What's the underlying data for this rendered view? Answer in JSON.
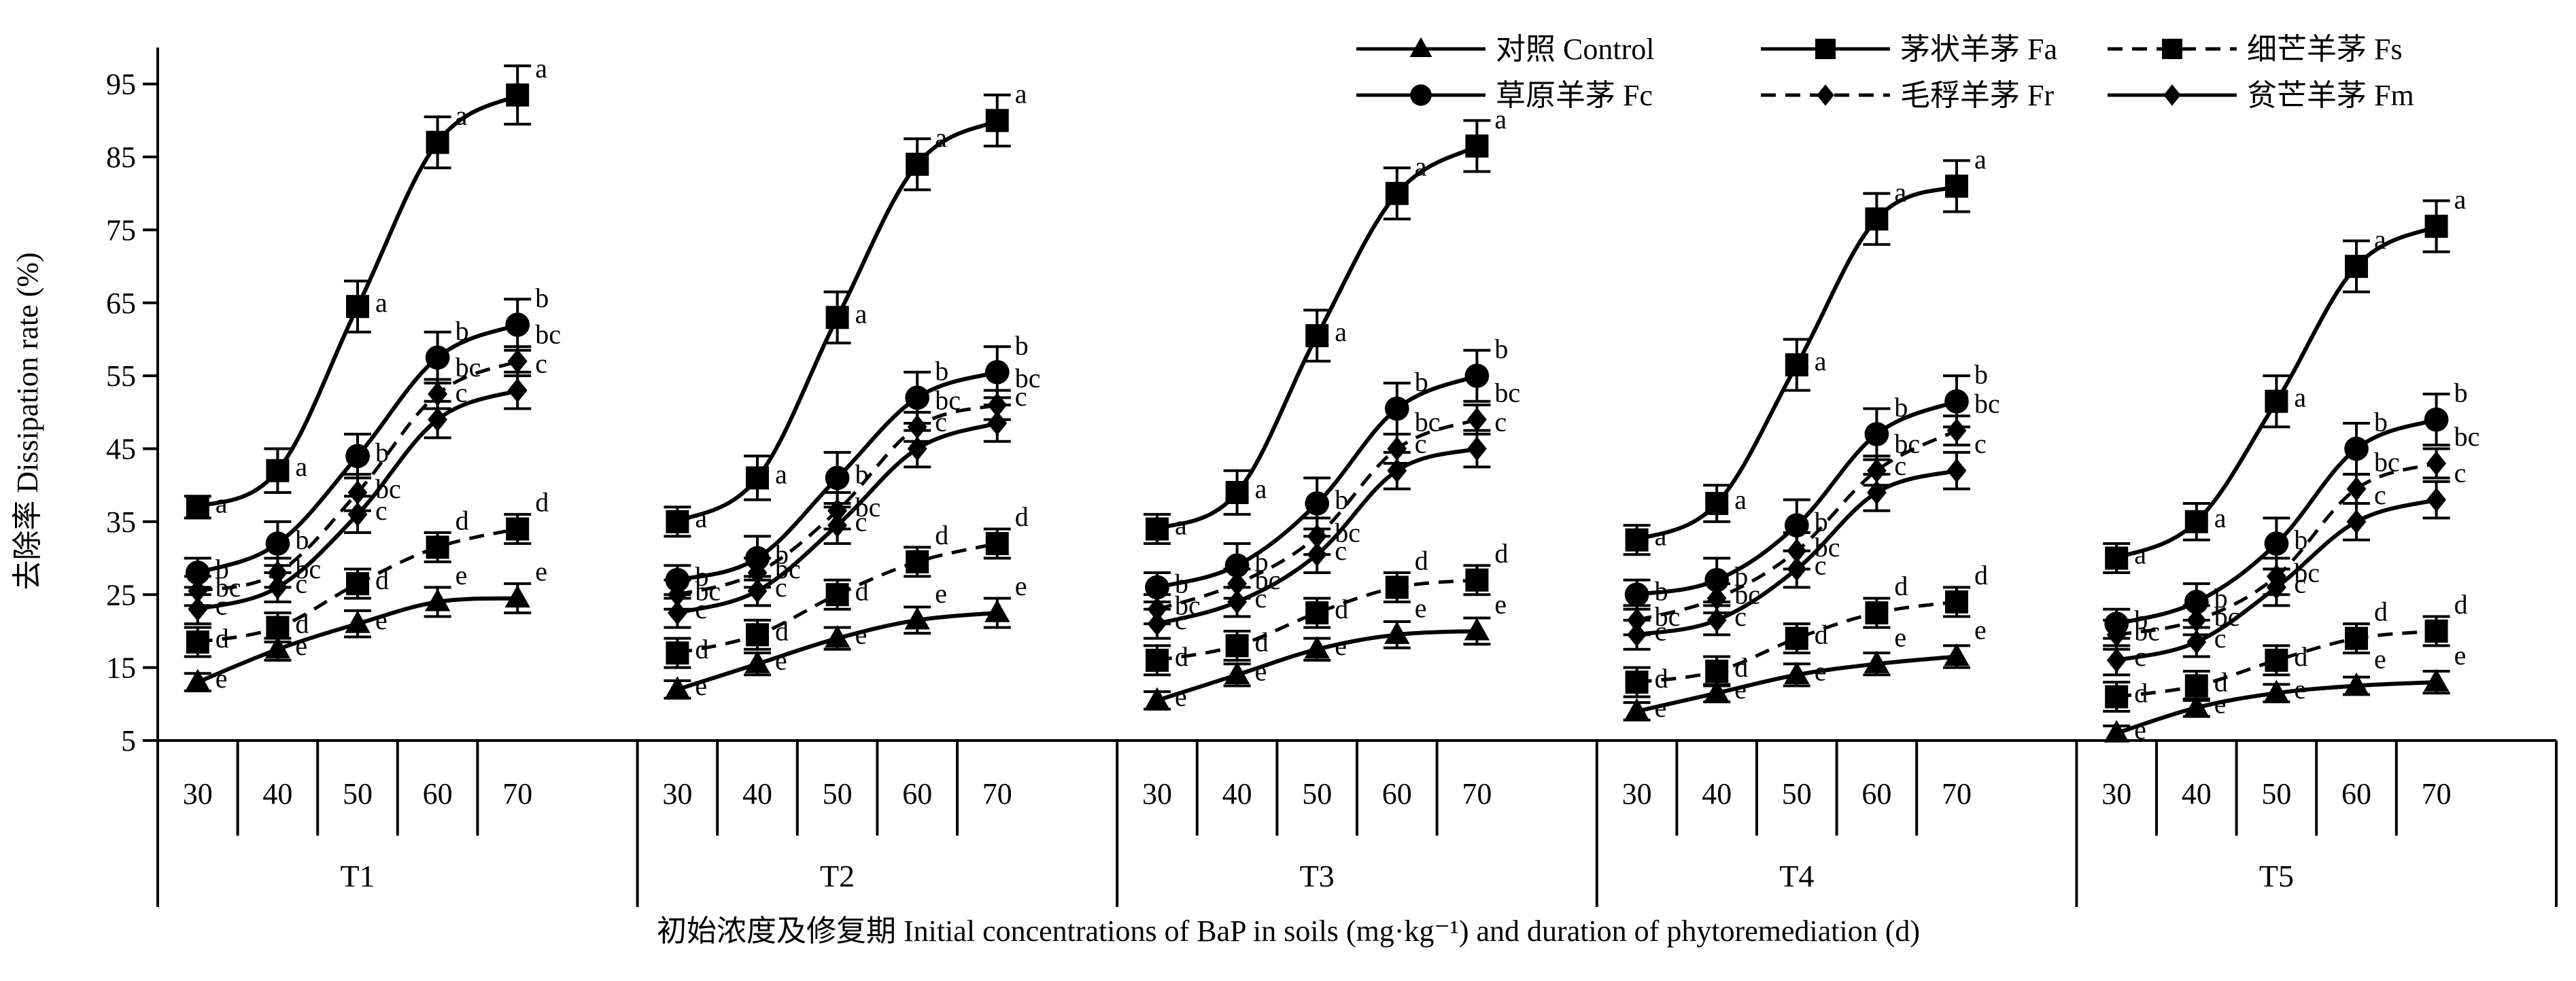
{
  "chart_data": {
    "type": "line",
    "ylabel": "去除率 Dissipation rate (%)",
    "xlabel": "初始浓度及修复期 Initial concentrations of BaP in soils (mg·kg⁻¹) and duration of phytoremediation (d)",
    "ylim": [
      5,
      100
    ],
    "yticks": [
      5,
      15,
      25,
      35,
      45,
      55,
      65,
      75,
      85,
      95
    ],
    "grid": false,
    "legend_position": "top-right",
    "groups": [
      "T1",
      "T2",
      "T3",
      "T4",
      "T5"
    ],
    "concentrations": [
      "30",
      "40",
      "50",
      "60",
      "70"
    ],
    "series": [
      {
        "name": "对照 Control",
        "marker": "triangle",
        "dash": false,
        "values": [
          [
            13,
            17.5,
            21,
            24,
            24.5
          ],
          [
            12,
            15.5,
            19,
            21.5,
            22.5
          ],
          [
            10.5,
            14,
            17.5,
            19.5,
            20
          ],
          [
            9,
            11.5,
            14,
            15.5,
            16.5
          ],
          [
            6,
            9.5,
            11.5,
            12.5,
            13
          ]
        ],
        "errors": [
          [
            1.2,
            1.5,
            1.8,
            2,
            2
          ],
          [
            1.2,
            1.5,
            1.5,
            1.8,
            2
          ],
          [
            1.2,
            1.5,
            1.5,
            1.8,
            1.8
          ],
          [
            1.2,
            1.2,
            1.5,
            1.5,
            1.5
          ],
          [
            1,
            1.2,
            1.2,
            1.2,
            1.5
          ]
        ],
        "labels": [
          [
            "e",
            "e",
            "e",
            "e",
            "e"
          ],
          [
            "e",
            "e",
            "e",
            "e",
            "e"
          ],
          [
            "e",
            "e",
            "e",
            "e",
            "e"
          ],
          [
            "e",
            "e",
            "e",
            "e",
            "e"
          ],
          [
            "e",
            "e",
            "e",
            "e",
            "e"
          ]
        ]
      },
      {
        "name": "茅状羊茅 Fa",
        "marker": "square",
        "dash": false,
        "values": [
          [
            37,
            42,
            64.5,
            87,
            93.5
          ],
          [
            35,
            41,
            63,
            84,
            90
          ],
          [
            34,
            39,
            60.5,
            80,
            86.5
          ],
          [
            32.5,
            37.5,
            56.5,
            76.5,
            81
          ],
          [
            30,
            35,
            51.5,
            70,
            75.5
          ]
        ],
        "errors": [
          [
            1.5,
            3,
            3.5,
            3.5,
            4
          ],
          [
            2,
            3,
            3.5,
            3.5,
            3.5
          ],
          [
            2,
            3,
            3.5,
            3.5,
            3.5
          ],
          [
            2,
            2.5,
            3.5,
            3.5,
            3.5
          ],
          [
            2,
            2.5,
            3.5,
            3.5,
            3.5
          ]
        ],
        "labels": [
          [
            "a",
            "a",
            "a",
            "a",
            "a"
          ],
          [
            "a",
            "a",
            "a",
            "a",
            "a"
          ],
          [
            "a",
            "a",
            "a",
            "a",
            "a"
          ],
          [
            "a",
            "a",
            "a",
            "a",
            "a"
          ],
          [
            "a",
            "a",
            "a",
            "a",
            "a"
          ]
        ]
      },
      {
        "name": "细芒羊茅 Fs",
        "marker": "square",
        "dash": true,
        "values": [
          [
            18.5,
            20.5,
            26.5,
            31.5,
            34
          ],
          [
            17,
            19.5,
            25,
            29.5,
            32
          ],
          [
            16,
            18,
            22.5,
            26,
            27
          ],
          [
            13,
            14.5,
            19,
            22.5,
            24
          ],
          [
            11,
            12.5,
            16,
            19,
            20
          ]
        ],
        "errors": [
          [
            2,
            2,
            2,
            2,
            2
          ],
          [
            2,
            2,
            2,
            2,
            2
          ],
          [
            2,
            2,
            2,
            2,
            2
          ],
          [
            2,
            2,
            2,
            2,
            2
          ],
          [
            2,
            2,
            2,
            2,
            2
          ]
        ],
        "labels": [
          [
            "d",
            "d",
            "d",
            "d",
            "d"
          ],
          [
            "d",
            "d",
            "d",
            "d",
            "d"
          ],
          [
            "d",
            "d",
            "d",
            "d",
            "d"
          ],
          [
            "d",
            "d",
            "d",
            "d",
            "d"
          ],
          [
            "d",
            "d",
            "d",
            "d",
            "d"
          ]
        ]
      },
      {
        "name": "草原羊茅 Fc",
        "marker": "circle",
        "dash": false,
        "values": [
          [
            28,
            32,
            44,
            57.5,
            62
          ],
          [
            27,
            30,
            41,
            52,
            55.5
          ],
          [
            26,
            29,
            37.5,
            50.5,
            55
          ],
          [
            25,
            27,
            34.5,
            47,
            51.5
          ],
          [
            21,
            24,
            32,
            45,
            49
          ]
        ],
        "errors": [
          [
            2,
            3,
            3,
            3.5,
            3.5
          ],
          [
            2,
            3,
            3.5,
            3.5,
            3.5
          ],
          [
            2,
            3,
            3.5,
            3.5,
            3.5
          ],
          [
            2,
            3,
            3.5,
            3.5,
            3.5
          ],
          [
            2,
            2.5,
            3.5,
            3.5,
            3.5
          ]
        ],
        "labels": [
          [
            "b",
            "b",
            "b",
            "b",
            "b"
          ],
          [
            "b",
            "b",
            "b",
            "b",
            "b"
          ],
          [
            "b",
            "b",
            "b",
            "b",
            "b"
          ],
          [
            "b",
            "b",
            "b",
            "b",
            "b"
          ],
          [
            "b",
            "b",
            "b",
            "b",
            "b"
          ]
        ]
      },
      {
        "name": "毛稃羊茅 Fr",
        "marker": "diamond",
        "dash": true,
        "values": [
          [
            25.5,
            28,
            39,
            52.5,
            57
          ],
          [
            25,
            28,
            36.5,
            48,
            51
          ],
          [
            23,
            26.5,
            33,
            45,
            49
          ],
          [
            21.5,
            24.5,
            31,
            42,
            47.5
          ],
          [
            19.5,
            21.5,
            27.5,
            39.5,
            43
          ]
        ],
        "errors": [
          [
            2,
            2,
            2.5,
            2,
            2
          ],
          [
            2,
            2,
            2.5,
            2,
            2
          ],
          [
            2,
            2,
            2.5,
            2,
            2
          ],
          [
            2,
            2,
            2.5,
            2,
            2
          ],
          [
            2,
            2,
            2.5,
            2,
            2
          ]
        ],
        "labels": [
          [
            "bc",
            "bc",
            "bc",
            "bc",
            "bc"
          ],
          [
            "bc",
            "bc",
            "bc",
            "bc",
            "bc"
          ],
          [
            "bc",
            "bc",
            "bc",
            "bc",
            "bc"
          ],
          [
            "bc",
            "bc",
            "bc",
            "bc",
            "bc"
          ],
          [
            "bc",
            "bc",
            "bc",
            "bc",
            "bc"
          ]
        ]
      },
      {
        "name": "贫芒羊茅 Fm",
        "marker": "diamond",
        "dash": false,
        "values": [
          [
            23,
            26,
            36,
            49,
            53
          ],
          [
            22.5,
            25.5,
            34.5,
            45,
            48.5
          ],
          [
            21,
            24,
            30.5,
            42,
            45
          ],
          [
            19.5,
            21.5,
            28.5,
            39,
            42
          ],
          [
            16,
            18.5,
            26,
            35,
            38
          ]
        ],
        "errors": [
          [
            2,
            2,
            2.5,
            2.5,
            2.5
          ],
          [
            2,
            2,
            2.5,
            2.5,
            2.5
          ],
          [
            2,
            2,
            2.5,
            2.5,
            2.5
          ],
          [
            2,
            2,
            2.5,
            2.5,
            2.5
          ],
          [
            2,
            2,
            2.5,
            2.5,
            2.5
          ]
        ],
        "labels": [
          [
            "c",
            "c",
            "c",
            "c",
            "c"
          ],
          [
            "c",
            "c",
            "c",
            "c",
            "c"
          ],
          [
            "c",
            "c",
            "c",
            "c",
            "c"
          ],
          [
            "c",
            "c",
            "c",
            "c",
            "c"
          ],
          [
            "c",
            "c",
            "c",
            "c",
            "c"
          ]
        ]
      }
    ]
  }
}
